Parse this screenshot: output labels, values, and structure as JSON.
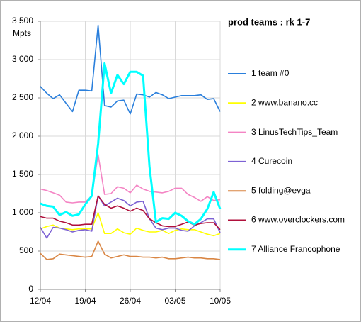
{
  "chart_data": {
    "type": "line",
    "title": "prod teams : rk 1-7",
    "y_label": "Mpts",
    "categories": [
      "12/04",
      null,
      null,
      null,
      null,
      null,
      null,
      "19/04",
      null,
      null,
      null,
      null,
      null,
      null,
      "26/04",
      null,
      null,
      null,
      null,
      null,
      null,
      "03/05",
      null,
      null,
      null,
      null,
      null,
      null,
      "10/05"
    ],
    "ylim": [
      0,
      3500
    ],
    "yticks": [
      0,
      500,
      {
        "value": 1000,
        "label": "1 000"
      },
      {
        "value": 1500,
        "label": "1 500"
      },
      {
        "value": 2000,
        "label": "2 000"
      },
      {
        "value": 2500,
        "label": "2 500"
      },
      {
        "value": 3000,
        "label": "3 000"
      },
      {
        "value": 3500,
        "label": "3 500"
      }
    ],
    "grid": true,
    "legend": "right",
    "series": [
      {
        "name": "1 team #0",
        "color": "#2a7fdc",
        "values": [
          2650,
          2560,
          2490,
          2540,
          2430,
          2320,
          2600,
          2600,
          2590,
          3450,
          2400,
          2380,
          2460,
          2470,
          2290,
          2550,
          2540,
          2510,
          2570,
          2540,
          2490,
          2510,
          2530,
          2530,
          2530,
          2540,
          2480,
          2490,
          2320
        ]
      },
      {
        "name": "2 www.banano.cc",
        "color": "#ffff00",
        "values": [
          790,
          820,
          840,
          800,
          790,
          780,
          790,
          790,
          790,
          1000,
          730,
          730,
          790,
          740,
          720,
          800,
          770,
          750,
          750,
          770,
          730,
          770,
          790,
          780,
          780,
          750,
          720,
          700,
          730
        ]
      },
      {
        "name": "3 LinusTechTips_Team",
        "color": "#f484c4",
        "values": [
          1310,
          1290,
          1260,
          1230,
          1140,
          1130,
          1140,
          1140,
          1220,
          1760,
          1240,
          1250,
          1340,
          1320,
          1260,
          1360,
          1310,
          1280,
          1270,
          1260,
          1280,
          1320,
          1320,
          1240,
          1200,
          1150,
          1210,
          1160,
          1170
        ]
      },
      {
        "name": "4 Curecoin",
        "color": "#7d62d4",
        "values": [
          810,
          670,
          810,
          800,
          780,
          750,
          770,
          780,
          760,
          1220,
          1090,
          1140,
          1190,
          1160,
          1090,
          1140,
          1150,
          920,
          800,
          780,
          800,
          800,
          770,
          760,
          830,
          870,
          920,
          920,
          740
        ]
      },
      {
        "name": "5 folding@evga",
        "color": "#d98644",
        "values": [
          470,
          390,
          400,
          460,
          450,
          440,
          430,
          420,
          430,
          630,
          460,
          410,
          430,
          450,
          430,
          430,
          420,
          420,
          410,
          420,
          400,
          400,
          410,
          420,
          410,
          410,
          400,
          400,
          390
        ]
      },
      {
        "name": "6 www.overclockers.com",
        "color": "#b0103c",
        "values": [
          950,
          930,
          930,
          890,
          870,
          840,
          840,
          850,
          850,
          1220,
          1110,
          1060,
          1090,
          1060,
          1020,
          1060,
          1030,
          920,
          870,
          830,
          820,
          820,
          850,
          880,
          840,
          860,
          870,
          870,
          780
        ]
      },
      {
        "name": "7 Alliance Francophone",
        "color": "#00ffff",
        "values": [
          1120,
          1090,
          1080,
          970,
          1010,
          960,
          980,
          1110,
          1220,
          1900,
          2950,
          2560,
          2800,
          2680,
          2840,
          2840,
          2790,
          1600,
          880,
          930,
          920,
          1000,
          960,
          890,
          850,
          920,
          1050,
          1270,
          1050
        ]
      }
    ]
  }
}
